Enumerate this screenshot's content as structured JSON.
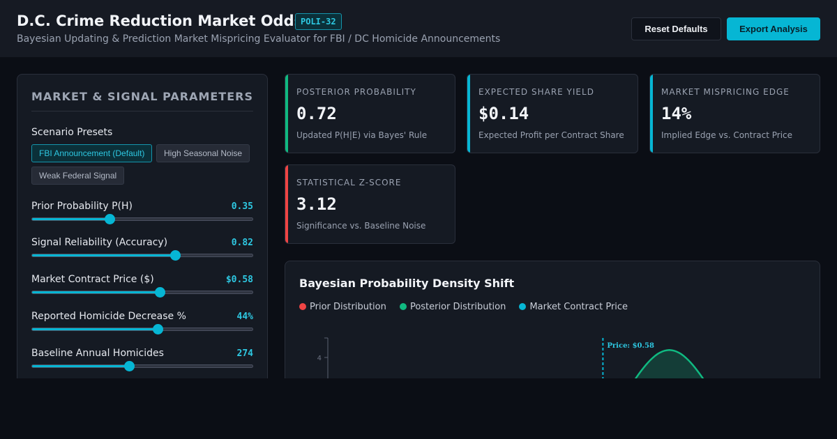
{
  "header": {
    "title": "D.C. Crime Reduction Market Odds",
    "tag": "POLI-32",
    "subtitle": "Bayesian Updating & Prediction Market Mispricing Evaluator for FBI / DC Homicide Announcements",
    "reset_label": "Reset Defaults",
    "export_label": "Export Analysis"
  },
  "panel": {
    "title": "MARKET & SIGNAL PARAMETERS",
    "presets_label": "Scenario Presets",
    "presets": [
      "FBI Announcement (Default)",
      "High Seasonal Noise",
      "Weak Federal Signal"
    ],
    "active_preset": "FBI Announcement (Default)",
    "sliders": [
      {
        "label": "Prior Probability P(H)",
        "value": "0.35",
        "fraction": 0.35
      },
      {
        "label": "Signal Reliability (Accuracy)",
        "value": "0.82",
        "fraction": 0.65
      },
      {
        "label": "Market Contract Price ($)",
        "value": "$0.58",
        "fraction": 0.58
      },
      {
        "label": "Reported Homicide Decrease %",
        "value": "44%",
        "fraction": 0.57
      },
      {
        "label": "Baseline Annual Homicides",
        "value": "274",
        "fraction": 0.44
      }
    ]
  },
  "cards": [
    {
      "label": "POSTERIOR PROBABILITY",
      "value": "0.72",
      "sub": "Updated P(H|E) via Bayes' Rule",
      "accent": "#10b981"
    },
    {
      "label": "EXPECTED SHARE YIELD",
      "value": "$0.14",
      "sub": "Expected Profit per Contract Share",
      "accent": "#06b6d4"
    },
    {
      "label": "MARKET MISPRICING EDGE",
      "value": "14%",
      "sub": "Implied Edge vs. Contract Price",
      "accent": "#06b6d4"
    },
    {
      "label": "STATISTICAL Z-SCORE",
      "value": "3.12",
      "sub": "Significance vs. Baseline Noise",
      "accent": "#ef4444"
    }
  ],
  "chart_data": {
    "type": "area",
    "title": "Bayesian Probability Density Shift",
    "legend": [
      {
        "name": "Prior Distribution",
        "color": "#ef4444"
      },
      {
        "name": "Posterior Distribution",
        "color": "#10b981"
      },
      {
        "name": "Market Contract Price",
        "color": "#06b6d4"
      }
    ],
    "y_ticks": [
      "4"
    ],
    "market_price": 0.58,
    "price_label": "Price: $0.58",
    "posterior_peak": {
      "x": 0.72,
      "density": 4.3
    },
    "xlim": [
      0,
      1
    ],
    "ylim": [
      0,
      5
    ]
  }
}
